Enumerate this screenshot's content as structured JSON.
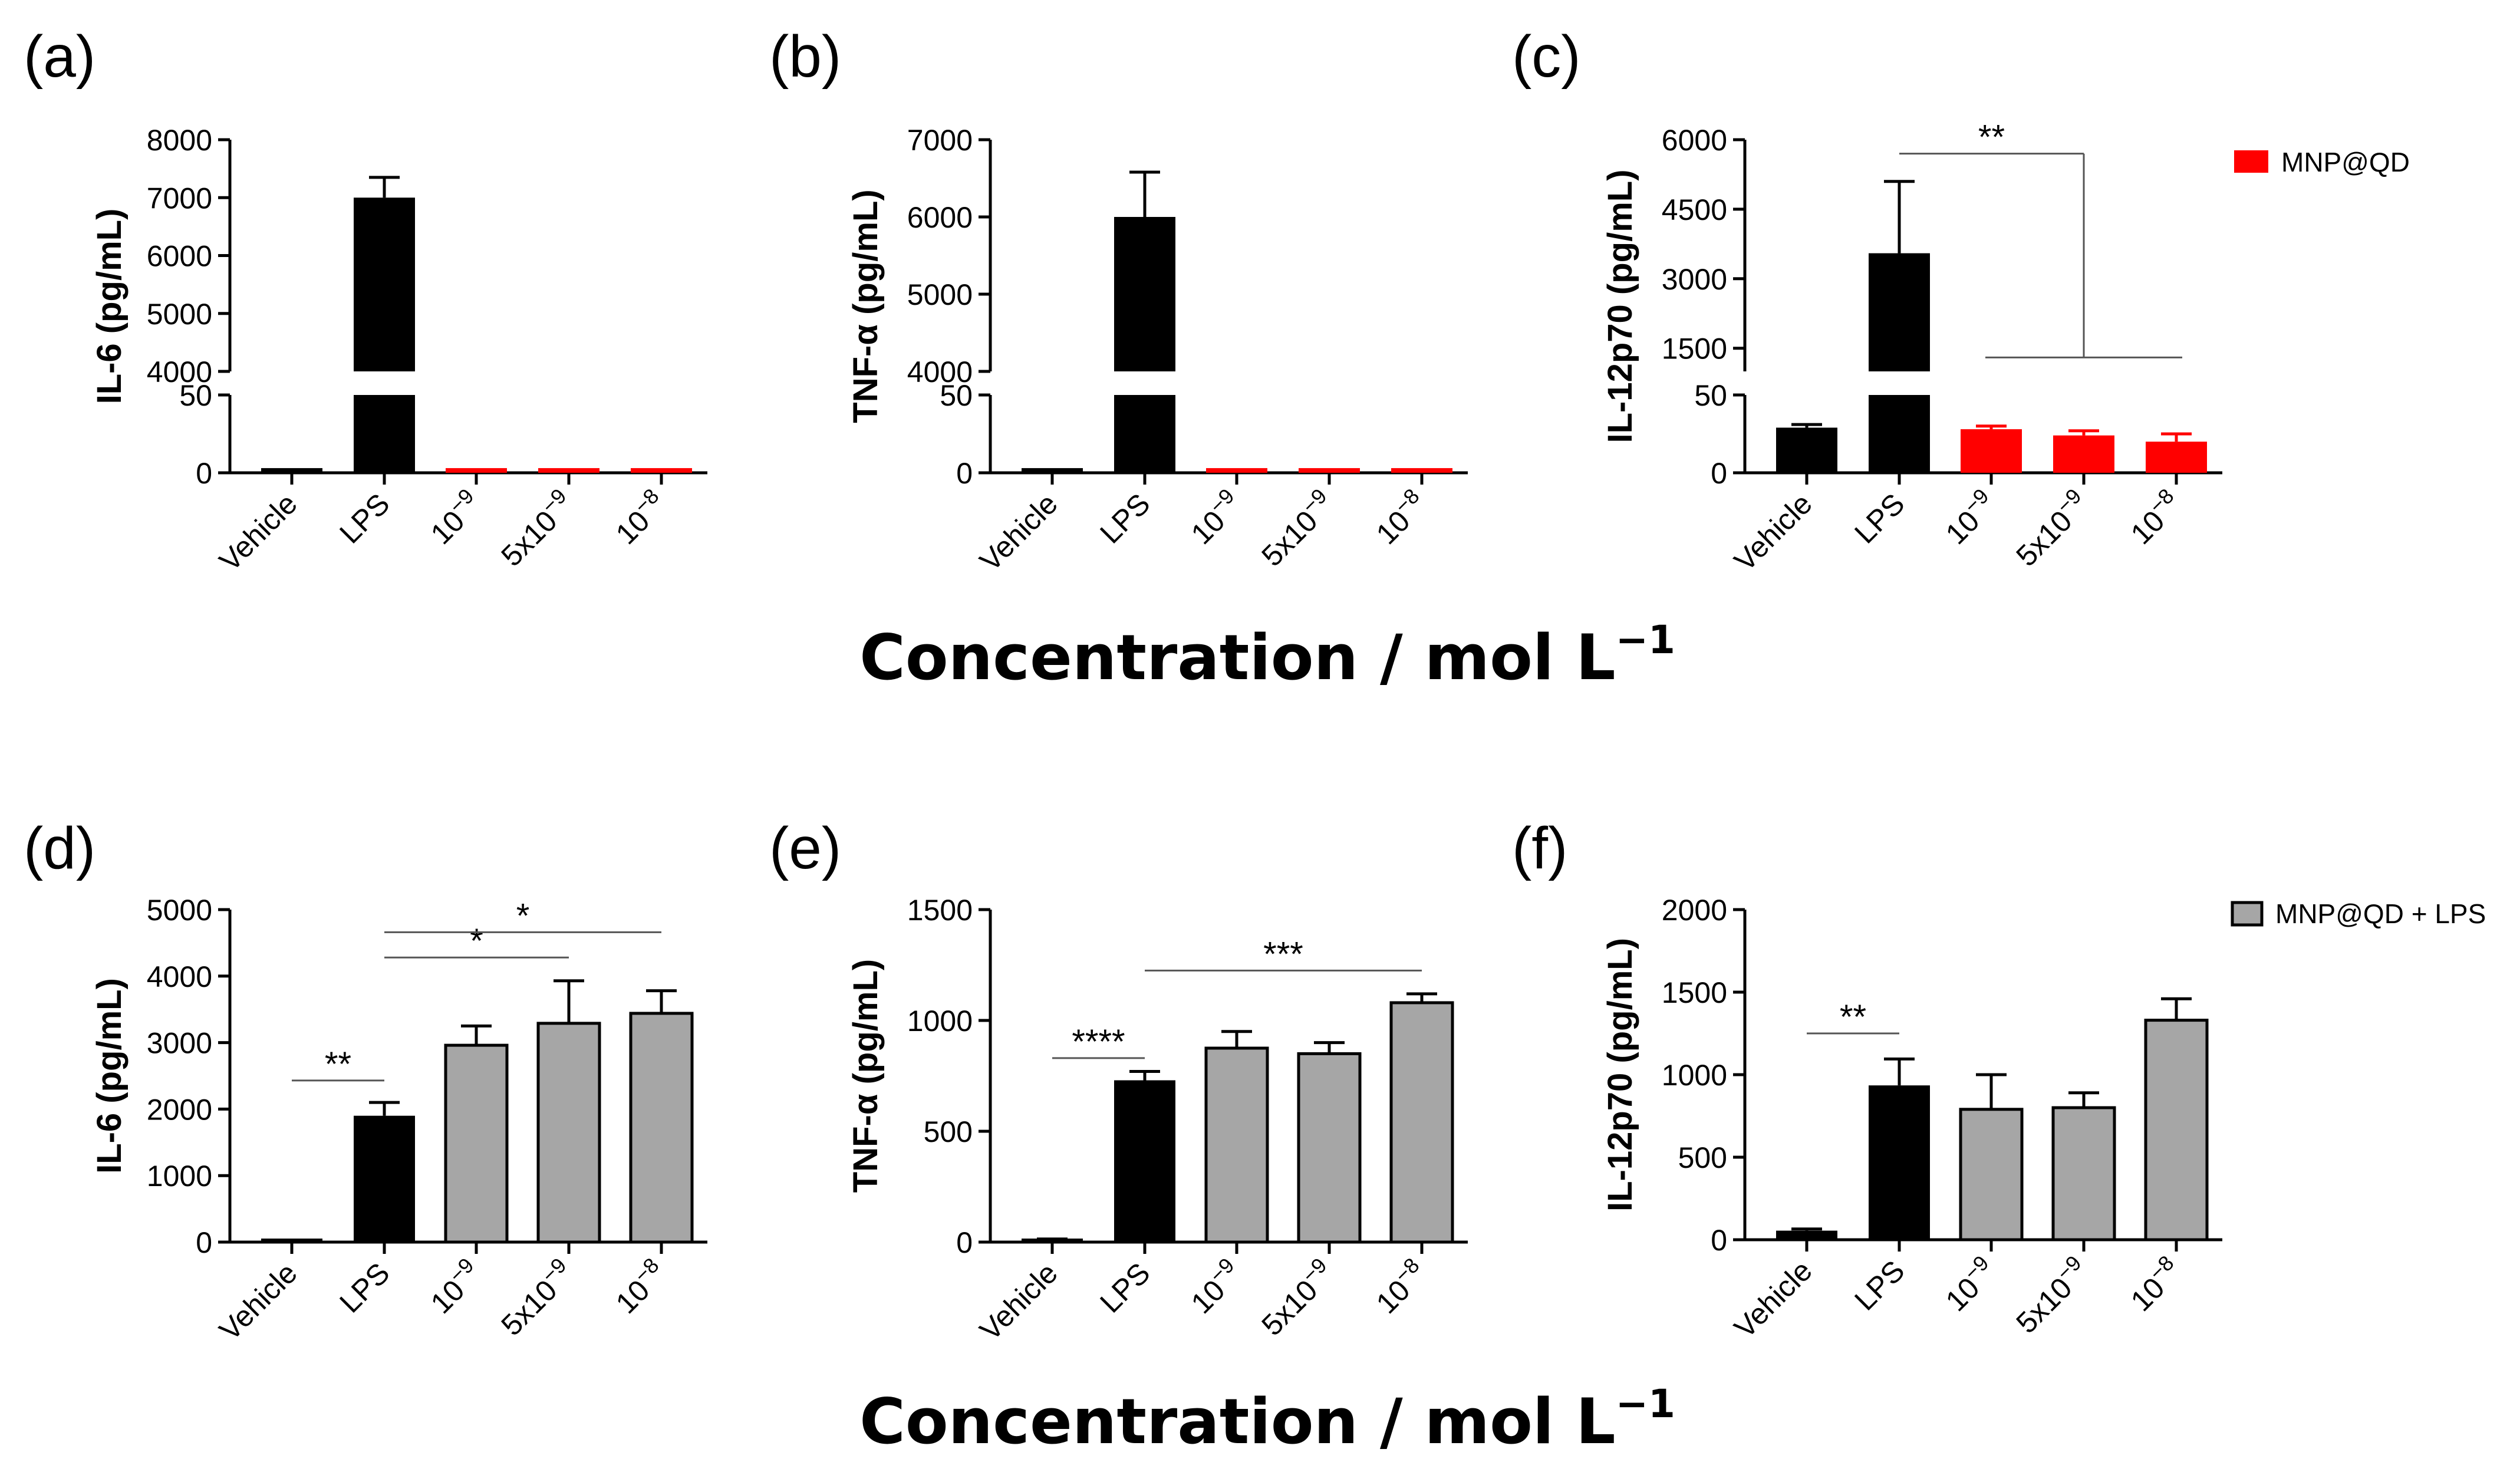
{
  "figure": {
    "xtitle_top": "Concentration / mol L",
    "xtitle_bottom": "Concentration / mol L",
    "xtitle_superscript": "−1"
  },
  "legend_top": {
    "label": "MNP@QD",
    "color": "#ff0000"
  },
  "legend_bottom": {
    "label": "MNP@QD + LPS",
    "color": "#a6a6a6"
  },
  "chart_data": [
    {
      "panel": "(a)",
      "type": "bar",
      "ylabel": "IL-6 (pg/mL)",
      "broken_axis": true,
      "lower_ylim": [
        0,
        50
      ],
      "lower_ticks": [
        0,
        50
      ],
      "upper_ylim": [
        4000,
        8000
      ],
      "upper_ticks": [
        4000,
        5000,
        6000,
        7000,
        8000
      ],
      "categories": [
        {
          "base": "Vehicle",
          "exp": ""
        },
        {
          "base": "LPS",
          "exp": ""
        },
        {
          "base": "10",
          "exp": "−9"
        },
        {
          "base": "5x10",
          "exp": "−9"
        },
        {
          "base": "10",
          "exp": "−8"
        }
      ],
      "values": [
        3,
        7000,
        3,
        3,
        3
      ],
      "errors": [
        0,
        350,
        0,
        0,
        0
      ],
      "colors": [
        "#000000",
        "#000000",
        "#ff0000",
        "#ff0000",
        "#ff0000"
      ],
      "significance": []
    },
    {
      "panel": "(b)",
      "type": "bar",
      "ylabel": "TNF-α (pg/mL)",
      "broken_axis": true,
      "lower_ylim": [
        0,
        50
      ],
      "lower_ticks": [
        0,
        50
      ],
      "upper_ylim": [
        4000,
        7000
      ],
      "upper_ticks": [
        4000,
        5000,
        6000,
        7000
      ],
      "categories": [
        {
          "base": "Vehicle",
          "exp": ""
        },
        {
          "base": "LPS",
          "exp": ""
        },
        {
          "base": "10",
          "exp": "−9"
        },
        {
          "base": "5x10",
          "exp": "−9"
        },
        {
          "base": "10",
          "exp": "−8"
        }
      ],
      "values": [
        3,
        6000,
        3,
        3,
        3
      ],
      "errors": [
        0,
        580,
        0,
        0,
        0
      ],
      "colors": [
        "#000000",
        "#000000",
        "#ff0000",
        "#ff0000",
        "#ff0000"
      ],
      "significance": []
    },
    {
      "panel": "(c)",
      "type": "bar",
      "ylabel": "IL-12p70 (pg/mL)",
      "broken_axis": true,
      "lower_ylim": [
        0,
        50
      ],
      "lower_ticks": [
        0,
        50
      ],
      "upper_ylim": [
        1000,
        6000
      ],
      "upper_ticks": [
        1500,
        3000,
        4500,
        6000
      ],
      "categories": [
        {
          "base": "Vehicle",
          "exp": ""
        },
        {
          "base": "LPS",
          "exp": ""
        },
        {
          "base": "10",
          "exp": "−9"
        },
        {
          "base": "5x10",
          "exp": "−9"
        },
        {
          "base": "10",
          "exp": "−8"
        }
      ],
      "values": [
        29,
        3550,
        28,
        24,
        20
      ],
      "errors": [
        2,
        1550,
        2,
        3,
        5
      ],
      "colors": [
        "#000000",
        "#000000",
        "#ff0000",
        "#ff0000",
        "#ff0000"
      ],
      "significance": [
        {
          "label": "**",
          "from": 1,
          "to": 2,
          "to_end": 4,
          "value": 5700,
          "group_value": 1300
        }
      ]
    },
    {
      "panel": "(d)",
      "type": "bar",
      "ylabel": "IL-6 (pg/mL)",
      "broken_axis": false,
      "ylim": [
        0,
        5000
      ],
      "ticks": [
        0,
        1000,
        2000,
        3000,
        4000,
        5000
      ],
      "categories": [
        {
          "base": "Vehicle",
          "exp": ""
        },
        {
          "base": "LPS",
          "exp": ""
        },
        {
          "base": "10",
          "exp": "−9"
        },
        {
          "base": "5x10",
          "exp": "−9"
        },
        {
          "base": "10",
          "exp": "−8"
        }
      ],
      "values": [
        20,
        1900,
        2960,
        3290,
        3440
      ],
      "errors": [
        10,
        200,
        290,
        640,
        340
      ],
      "colors": [
        "#000000",
        "#000000",
        "#a6a6a6",
        "#a6a6a6",
        "#a6a6a6"
      ],
      "significance": [
        {
          "label": "**",
          "from": 0,
          "to": 1,
          "value": 2430
        },
        {
          "label": "*",
          "from": 1,
          "to": 3,
          "value": 4280
        },
        {
          "label": "*",
          "from": 1,
          "to": 4,
          "value": 4660
        }
      ]
    },
    {
      "panel": "(e)",
      "type": "bar",
      "ylabel": "TNF-α (pg/mL)",
      "broken_axis": false,
      "ylim": [
        0,
        1500
      ],
      "ticks": [
        0,
        500,
        1000,
        1500
      ],
      "categories": [
        {
          "base": "Vehicle",
          "exp": ""
        },
        {
          "base": "LPS",
          "exp": ""
        },
        {
          "base": "10",
          "exp": "−9"
        },
        {
          "base": "5x10",
          "exp": "−9"
        },
        {
          "base": "10",
          "exp": "−8"
        }
      ],
      "values": [
        8,
        730,
        875,
        850,
        1080
      ],
      "errors": [
        6,
        40,
        75,
        50,
        40
      ],
      "colors": [
        "#000000",
        "#000000",
        "#a6a6a6",
        "#a6a6a6",
        "#a6a6a6"
      ],
      "significance": [
        {
          "label": "****",
          "from": 0,
          "to": 1,
          "value": 830
        },
        {
          "label": "***",
          "from": 1,
          "to": 4,
          "value": 1225
        }
      ]
    },
    {
      "panel": "(f)",
      "type": "bar",
      "ylabel": "IL-12p70 (pg/mL)",
      "broken_axis": false,
      "ylim": [
        0,
        2000
      ],
      "ticks": [
        0,
        500,
        1000,
        1500,
        2000
      ],
      "categories": [
        {
          "base": "Vehicle",
          "exp": ""
        },
        {
          "base": "LPS",
          "exp": ""
        },
        {
          "base": "10",
          "exp": "−9"
        },
        {
          "base": "5x10",
          "exp": "−9"
        },
        {
          "base": "10",
          "exp": "−8"
        }
      ],
      "values": [
        55,
        935,
        790,
        800,
        1330
      ],
      "errors": [
        10,
        160,
        210,
        90,
        130
      ],
      "colors": [
        "#000000",
        "#000000",
        "#a6a6a6",
        "#a6a6a6",
        "#a6a6a6"
      ],
      "significance": [
        {
          "label": "**",
          "from": 0,
          "to": 1,
          "value": 1250
        }
      ]
    }
  ]
}
